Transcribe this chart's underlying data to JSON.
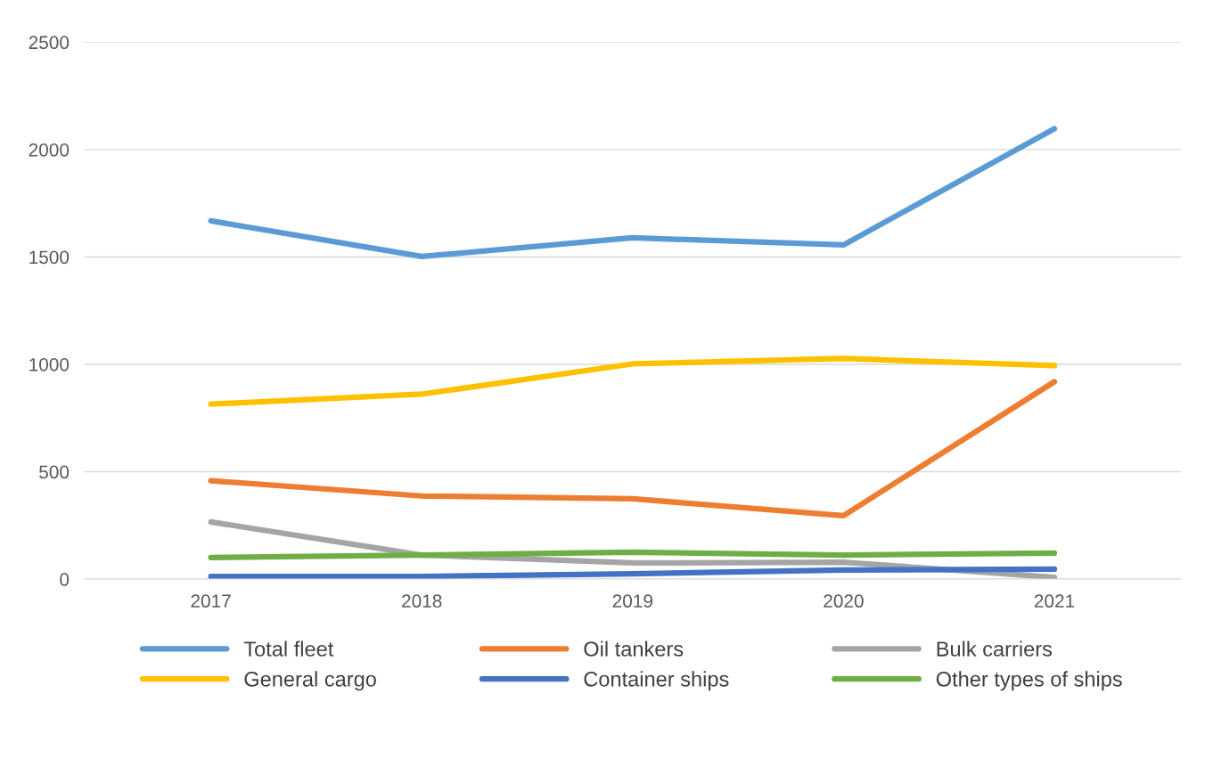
{
  "chart_data": {
    "type": "line",
    "categories": [
      "2017",
      "2018",
      "2019",
      "2020",
      "2021"
    ],
    "series": [
      {
        "name": "Total fleet",
        "color": "#5b9bd5",
        "values": [
          1668,
          1502,
          1589,
          1556,
          2097
        ]
      },
      {
        "name": "Oil tankers",
        "color": "#ed7d31",
        "values": [
          458,
          387,
          374,
          295,
          919
        ]
      },
      {
        "name": "Bulk carriers",
        "color": "#a5a5a5",
        "values": [
          266,
          112,
          75,
          79,
          8
        ]
      },
      {
        "name": "General cargo",
        "color": "#ffc000",
        "values": [
          815,
          861,
          1002,
          1027,
          994
        ]
      },
      {
        "name": "Container ships",
        "color": "#4472c4",
        "values": [
          12,
          12,
          25,
          42,
          46
        ]
      },
      {
        "name": "Other types of ships",
        "color": "#70ad47",
        "values": [
          100,
          112,
          125,
          112,
          121
        ]
      }
    ],
    "ylim": [
      0,
      2500
    ],
    "yticks": [
      0,
      500,
      1000,
      1500,
      2000,
      2500
    ],
    "grid": "y",
    "legend": "bottom",
    "marker": "none",
    "line_style": "solid"
  }
}
